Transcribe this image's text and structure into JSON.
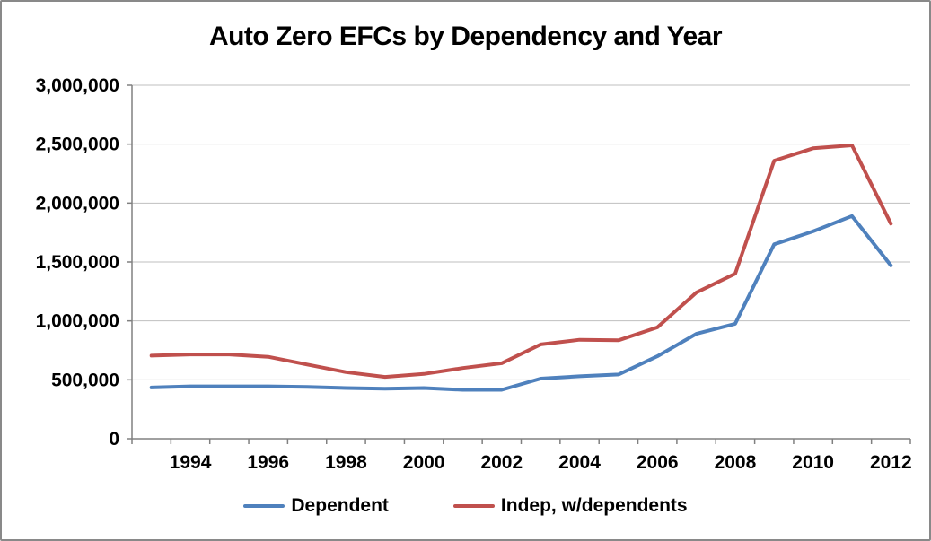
{
  "frame": {
    "background": "#ffffff",
    "border_color": "#898989"
  },
  "chart_data": {
    "type": "line",
    "title": "Auto Zero EFCs by Dependency and Year",
    "x": [
      1993,
      1994,
      1995,
      1996,
      1997,
      1998,
      1999,
      2000,
      2001,
      2002,
      2003,
      2004,
      2005,
      2006,
      2007,
      2008,
      2009,
      2010,
      2011,
      2012
    ],
    "series": [
      {
        "name": "Dependent",
        "color": "#4F81BD",
        "values": [
          435000,
          445000,
          445000,
          445000,
          440000,
          430000,
          425000,
          430000,
          415000,
          415000,
          510000,
          530000,
          545000,
          700000,
          890000,
          975000,
          1650000,
          1760000,
          1890000,
          1470000
        ]
      },
      {
        "name": "Indep, w/dependents",
        "color": "#C0504D",
        "values": [
          705000,
          715000,
          715000,
          695000,
          630000,
          565000,
          525000,
          550000,
          600000,
          640000,
          800000,
          840000,
          835000,
          945000,
          1240000,
          1400000,
          2360000,
          2465000,
          2490000,
          1825000
        ]
      }
    ],
    "ylim": [
      0,
      3000000
    ],
    "y_tick_step": 500000,
    "y_tick_labels": [
      "0",
      "500,000",
      "1,000,000",
      "1,500,000",
      "2,000,000",
      "2,500,000",
      "3,000,000"
    ],
    "x_tick_labels": [
      "1994",
      "1996",
      "1998",
      "2000",
      "2002",
      "2004",
      "2006",
      "2008",
      "2010",
      "2012"
    ],
    "grid": true,
    "legend_position": "bottom",
    "grid_color": "#BFBFBF",
    "axis_color": "#808080",
    "line_width": 4
  }
}
